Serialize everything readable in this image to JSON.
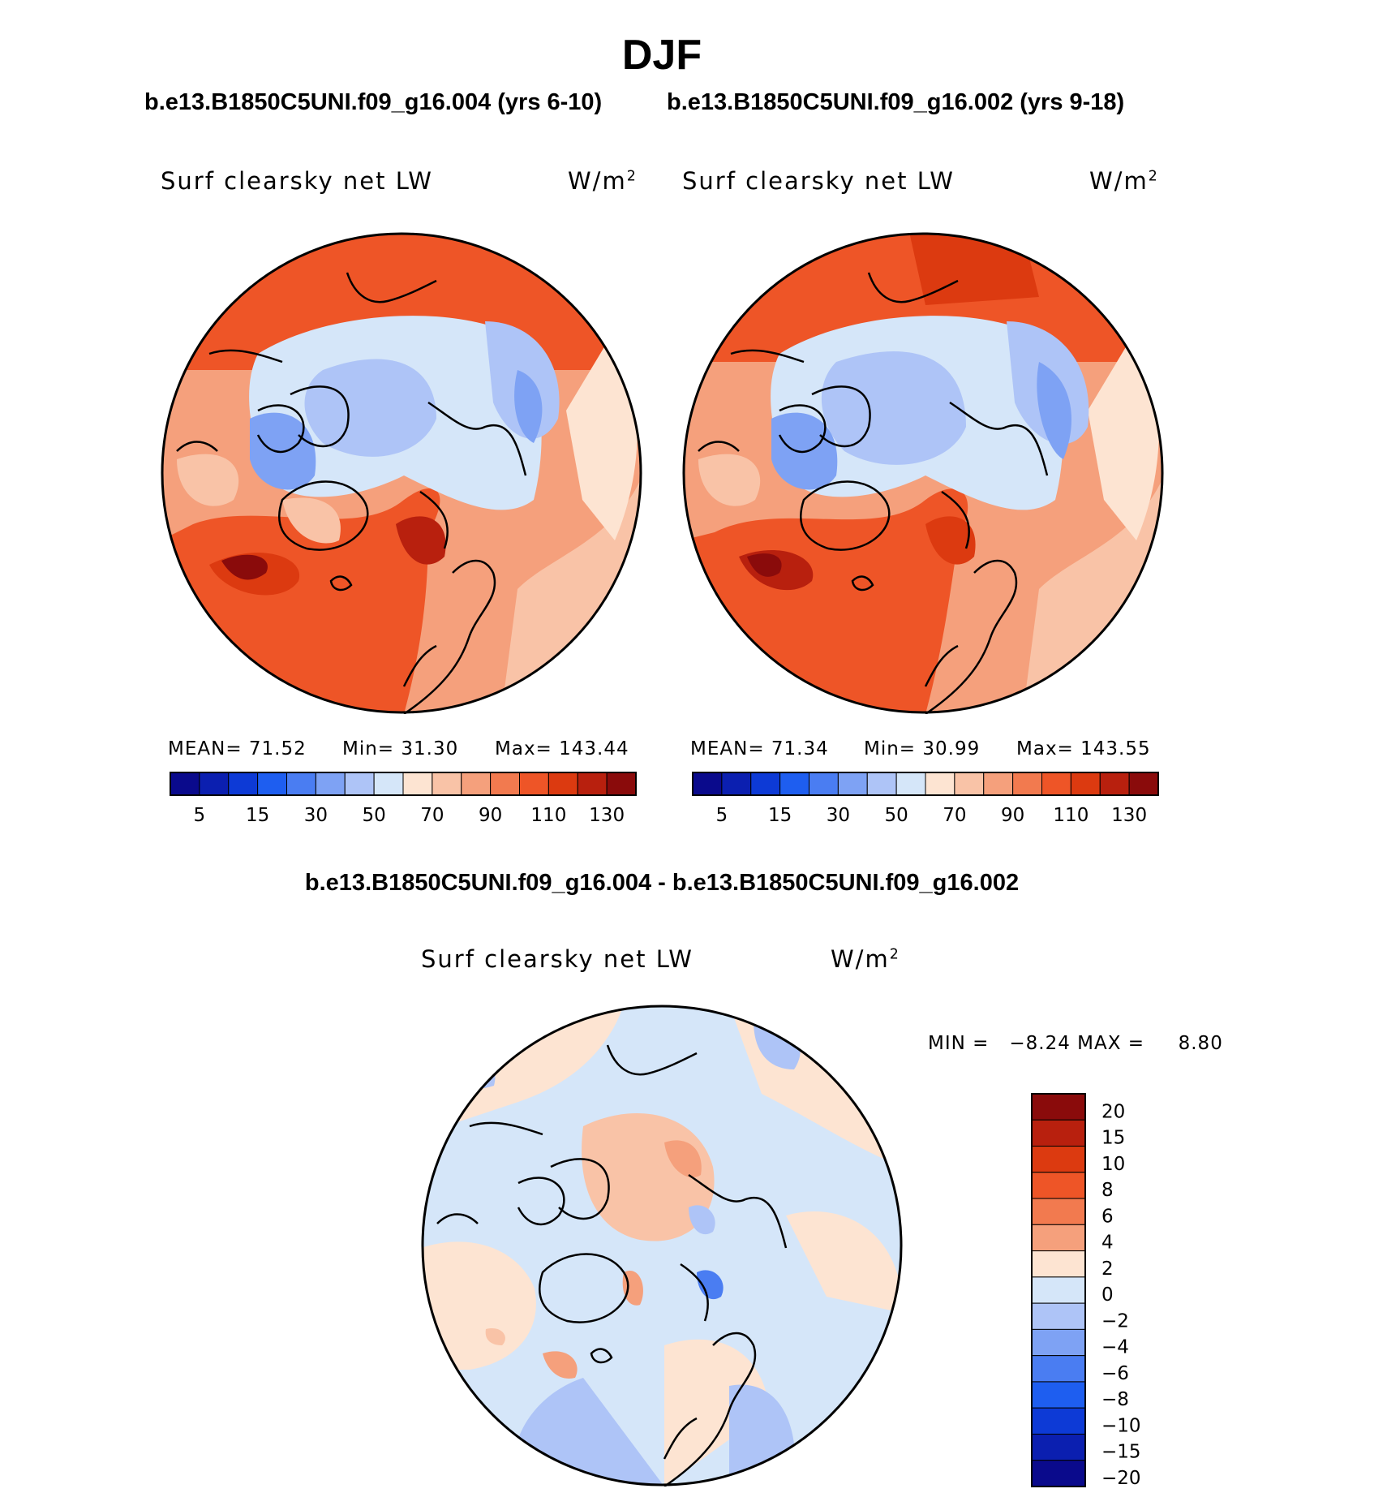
{
  "title": "DJF",
  "subtitle_left": "b.e13.B1850C5UNI.f09_g16.004 (yrs 6-10)",
  "subtitle_right": "b.e13.B1850C5UNI.f09_g16.002 (yrs 9-18)",
  "diff_title": "b.e13.B1850C5UNI.f09_g16.004 - b.e13.B1850C5UNI.f09_g16.002",
  "panels": [
    {
      "variable": "Surf clearsky net LW",
      "units_base": "W/m",
      "units_exp": "2",
      "stats": {
        "mean_label": "MEAN=",
        "mean": "71.52",
        "min_label": "Min=",
        "min": "31.30",
        "max_label": "Max=",
        "max": "143.44"
      }
    },
    {
      "variable": "Surf clearsky net LW",
      "units_base": "W/m",
      "units_exp": "2",
      "stats": {
        "mean_label": "MEAN=",
        "mean": "71.34",
        "min_label": "Min=",
        "min": "30.99",
        "max_label": "Max=",
        "max": "143.55"
      }
    },
    {
      "variable": "Surf clearsky net LW",
      "units_base": "W/m",
      "units_exp": "2",
      "minmax_text": "MIN =   −8.24 MAX =     8.80"
    }
  ],
  "colorbar_abs": {
    "colors": [
      "#0a0a8c",
      "#0b1fb0",
      "#0d3ad6",
      "#1e5ef0",
      "#4a7df2",
      "#7ea2f4",
      "#aec4f7",
      "#d5e6f9",
      "#fde4d2",
      "#f9c3a7",
      "#f5a07c",
      "#f27a4f",
      "#ee5527",
      "#dc3a10",
      "#b8200e",
      "#8a0b0b"
    ],
    "labels": [
      "5",
      "15",
      "30",
      "50",
      "70",
      "90",
      "110",
      "130"
    ]
  },
  "colorbar_diff": {
    "colors": [
      "#8a0b0b",
      "#b8200e",
      "#dc3a10",
      "#ee5527",
      "#f27a4f",
      "#f5a07c",
      "#fde4d2",
      "#d5e6f9",
      "#aec4f7",
      "#7ea2f4",
      "#4a7df2",
      "#1e5ef0",
      "#0d3ad6",
      "#0b1fb0",
      "#0a0a8c"
    ],
    "labels": [
      "20",
      "15",
      "10",
      "8",
      "6",
      "4",
      "2",
      "0",
      "−2",
      "−4",
      "−6",
      "−8",
      "−10",
      "−15",
      "−20"
    ]
  }
}
